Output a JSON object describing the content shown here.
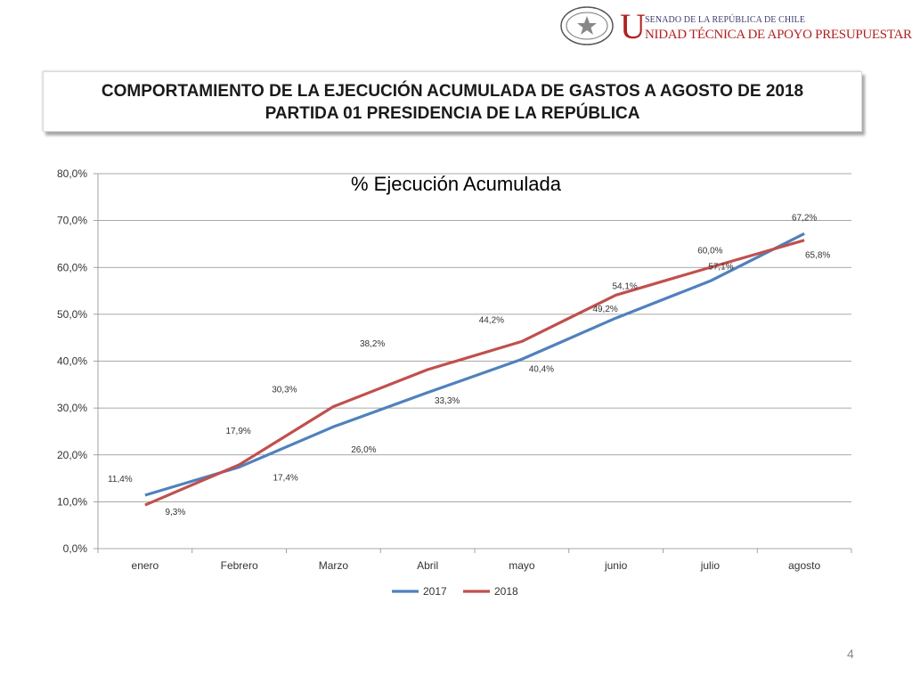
{
  "header": {
    "seal_text_top": "REPÚBLICA DE CHILE",
    "seal_text_bottom": "SENADO",
    "brand_initial": "U",
    "brand_line1": "SENADO DE LA REPÚBLICA DE CHILE",
    "brand_line2": "NIDAD TÉCNICA DE APOYO PRESUPUESTARIO"
  },
  "title": {
    "line1": "COMPORTAMIENTO DE LA EJECUCIÓN ACUMULADA DE GASTOS A AGOSTO DE 2018",
    "line2": "PARTIDA 01 PRESIDENCIA DE LA REPÚBLICA"
  },
  "page_number": "4",
  "chart_data": {
    "type": "line",
    "title": "% Ejecución Acumulada",
    "xlabel": "",
    "ylabel": "",
    "categories": [
      "enero",
      "Febrero",
      "Marzo",
      "Abril",
      "mayo",
      "junio",
      "julio",
      "agosto"
    ],
    "ylim": [
      0,
      80
    ],
    "yticks": [
      0,
      10,
      20,
      30,
      40,
      50,
      60,
      70,
      80
    ],
    "ytick_labels": [
      "0,0%",
      "10,0%",
      "20,0%",
      "30,0%",
      "40,0%",
      "50,0%",
      "60,0%",
      "70,0%",
      "80,0%"
    ],
    "grid": true,
    "legend_position": "bottom",
    "series": [
      {
        "name": "2017",
        "color": "#4f81bd",
        "values": [
          11.4,
          17.4,
          26.0,
          33.3,
          40.4,
          49.2,
          57.1,
          67.2
        ],
        "labels": [
          "11,4%",
          "17,4%",
          "26,0%",
          "33,3%",
          "40,4%",
          "49,2%",
          "57,1%",
          "67,2%"
        ]
      },
      {
        "name": "2018",
        "color": "#c0504d",
        "values": [
          9.3,
          17.9,
          30.3,
          38.2,
          44.2,
          54.1,
          60.0,
          65.8
        ],
        "labels": [
          "9,3%",
          "17,9%",
          "30,3%",
          "38,2%",
          "44,2%",
          "54,1%",
          "60,0%",
          "65,8%"
        ]
      }
    ]
  }
}
